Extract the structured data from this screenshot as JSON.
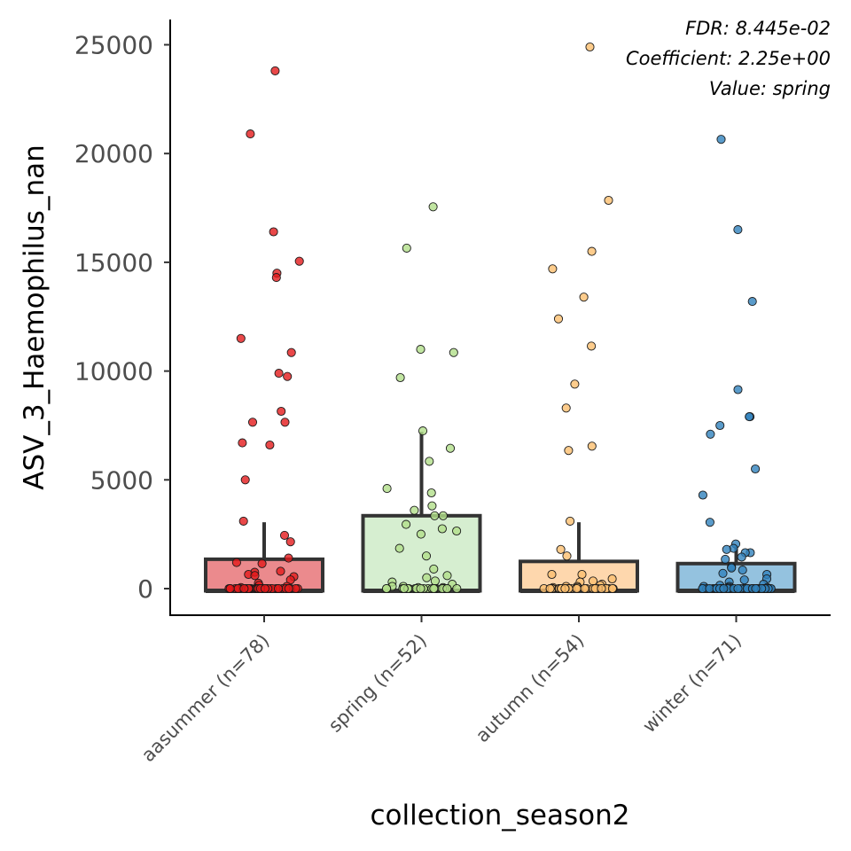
{
  "chart_data": {
    "type": "box",
    "xlabel": "collection_season2",
    "ylabel": "ASV_3_Haemophilus_nan",
    "ylim": [
      -1200,
      26100
    ],
    "yticks": [
      0,
      5000,
      10000,
      15000,
      20000,
      25000
    ],
    "grid": false,
    "legend": "none",
    "annotations": [
      "FDR: 8.445e-02",
      "Coefficient: 2.25e+00",
      "Value: spring"
    ],
    "categories": [
      "aasummer (n=78)",
      "spring (n=52)",
      "autumn (n=54)",
      "winter (n=71)"
    ],
    "series": [
      {
        "category": "aasummer (n=78)",
        "fill": "#eb8a8d",
        "point_color": "#e31a1c",
        "box": {
          "q1": -100,
          "median": -100,
          "q3": 1350,
          "whisker_low": -100,
          "whisker_high": 3050
        },
        "points": [
          23800,
          20900,
          16400,
          15050,
          14500,
          14300,
          11500,
          10850,
          9900,
          9750,
          8150,
          7650,
          7650,
          6700,
          6600,
          5000,
          3100,
          2450,
          2150,
          1400,
          1200,
          1150,
          800,
          750,
          650,
          600,
          550,
          400,
          250,
          150,
          100,
          50,
          0,
          0,
          0,
          0,
          0,
          0,
          0,
          0,
          0,
          0,
          0,
          0,
          0,
          0,
          0,
          0,
          0,
          0,
          0,
          0,
          0,
          0,
          0,
          0,
          0,
          0,
          0,
          0,
          0,
          0,
          0,
          0,
          0,
          0,
          0,
          0,
          0,
          0,
          0,
          0,
          0,
          0,
          0,
          0,
          0,
          0
        ]
      },
      {
        "category": "spring (n=52)",
        "fill": "#d6eed0",
        "point_color": "#b2df8a",
        "box": {
          "q1": -100,
          "median": -100,
          "q3": 3350,
          "whisker_low": -100,
          "whisker_high": 7200
        },
        "points": [
          17550,
          15650,
          11000,
          10850,
          9700,
          7250,
          6450,
          5850,
          4600,
          4400,
          3800,
          3600,
          3350,
          3350,
          2950,
          2750,
          2650,
          2500,
          1850,
          1500,
          900,
          600,
          500,
          350,
          300,
          200,
          100,
          100,
          50,
          50,
          0,
          0,
          0,
          0,
          0,
          0,
          0,
          0,
          0,
          0,
          0,
          0,
          0,
          0,
          0,
          0,
          0,
          0,
          0,
          0,
          0,
          0
        ]
      },
      {
        "category": "autumn (n=54)",
        "fill": "#fed7ad",
        "point_color": "#fdbf6f",
        "box": {
          "q1": -100,
          "median": -100,
          "q3": 1250,
          "whisker_low": -100,
          "whisker_high": 3050
        },
        "points": [
          24900,
          17850,
          15500,
          14700,
          13400,
          12400,
          11150,
          9400,
          8300,
          6550,
          6350,
          3100,
          1800,
          1500,
          650,
          650,
          450,
          350,
          300,
          200,
          150,
          100,
          100,
          50,
          50,
          0,
          0,
          0,
          0,
          0,
          0,
          0,
          0,
          0,
          0,
          0,
          0,
          0,
          0,
          0,
          0,
          0,
          0,
          0,
          0,
          0,
          0,
          0,
          0,
          0,
          0,
          0,
          0,
          0
        ]
      },
      {
        "category": "winter (n=71)",
        "fill": "#94c2df",
        "point_color": "#3182bd",
        "box": {
          "q1": -100,
          "median": -100,
          "q3": 1150,
          "whisker_low": -100,
          "whisker_high": 1950
        },
        "points": [
          20650,
          16500,
          13200,
          9150,
          7900,
          7900,
          7500,
          7100,
          5500,
          4300,
          3050,
          2050,
          1850,
          1800,
          1650,
          1650,
          1450,
          1350,
          1000,
          950,
          850,
          700,
          650,
          450,
          400,
          300,
          200,
          150,
          100,
          100,
          50,
          50,
          0,
          0,
          0,
          0,
          0,
          0,
          0,
          0,
          0,
          0,
          0,
          0,
          0,
          0,
          0,
          0,
          0,
          0,
          0,
          0,
          0,
          0,
          0,
          0,
          0,
          0,
          0,
          0,
          0,
          0,
          0,
          0,
          0,
          0,
          0,
          0,
          0,
          0,
          0
        ]
      }
    ]
  }
}
